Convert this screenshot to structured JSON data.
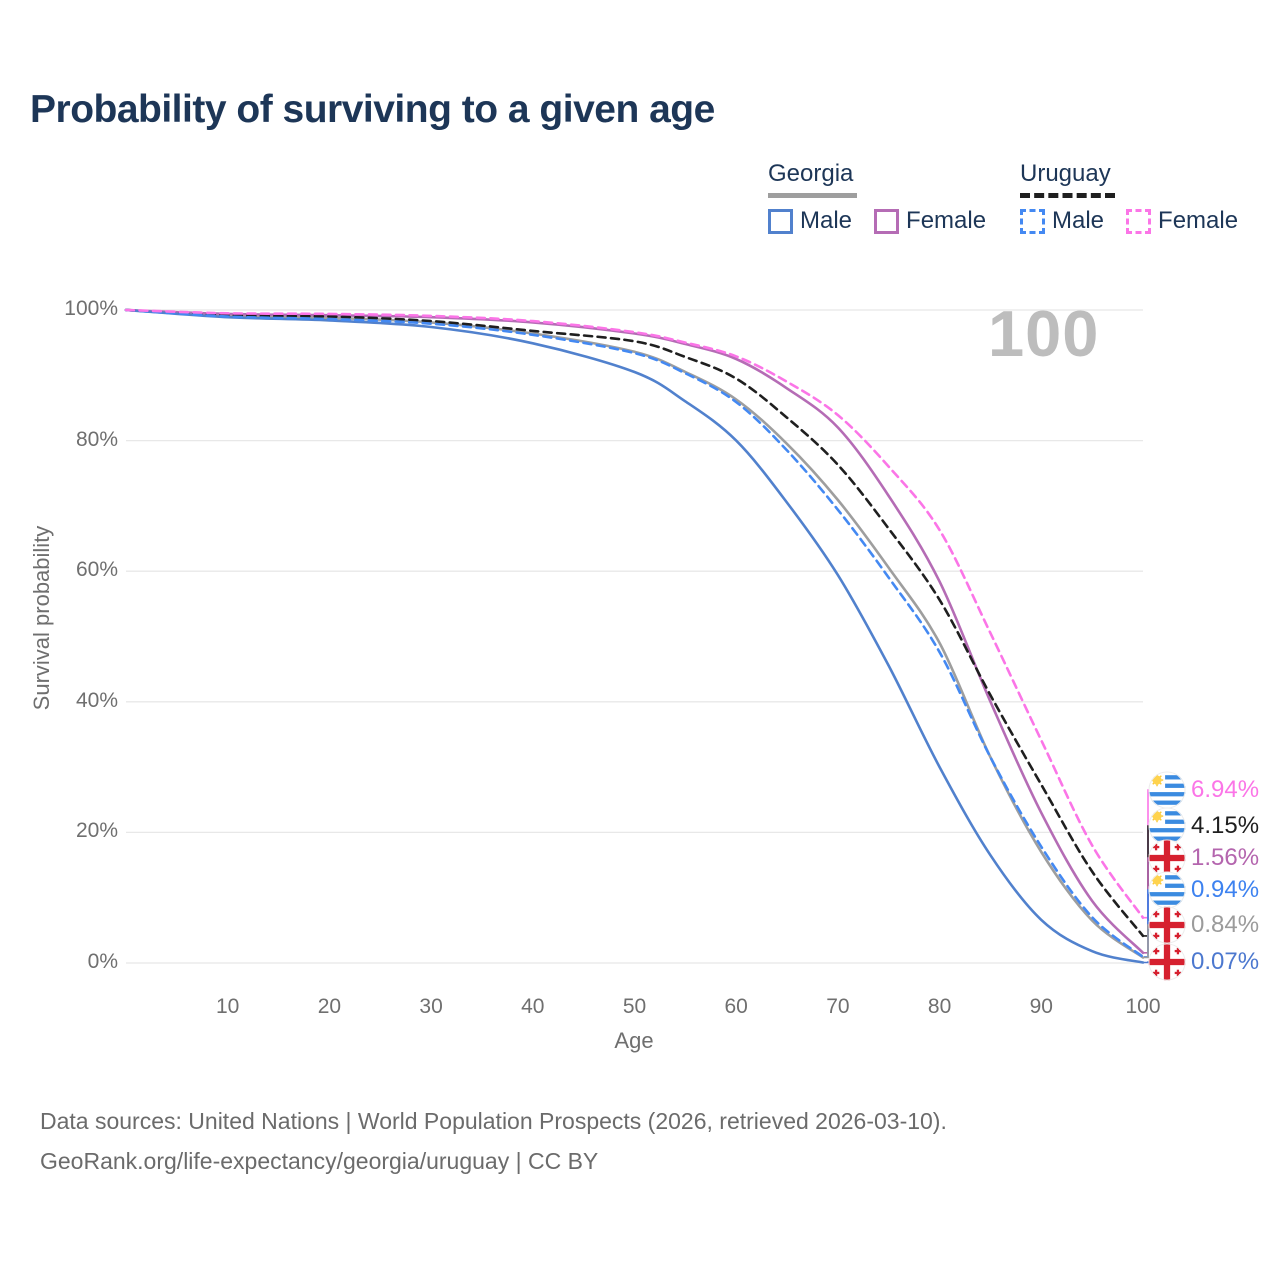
{
  "title": "Probability of surviving to a given age",
  "watermark": "100",
  "legend": {
    "groups": [
      {
        "country": "Georgia",
        "line_style": "solid",
        "underline_color": "#9e9e9e",
        "items": [
          {
            "label": "Male",
            "color": "#5181cd",
            "dashed": false
          },
          {
            "label": "Female",
            "color": "#b56cb5",
            "dashed": false
          }
        ]
      },
      {
        "country": "Uruguay",
        "line_style": "dashed",
        "underline_color": "#1f1f1f",
        "items": [
          {
            "label": "Male",
            "color": "#4489f2",
            "dashed": true
          },
          {
            "label": "Female",
            "color": "#fb75e7",
            "dashed": true
          }
        ]
      }
    ]
  },
  "chart_data": {
    "type": "line",
    "title": "Probability of surviving to a given age",
    "xlabel": "Age",
    "ylabel": "Survival probability",
    "xlim": [
      0,
      110
    ],
    "ylim": [
      0,
      100
    ],
    "grid": "horizontal",
    "x_ticks": [
      10,
      20,
      30,
      40,
      50,
      60,
      70,
      80,
      90,
      100
    ],
    "y_ticks": [
      0,
      20,
      40,
      60,
      80,
      100
    ],
    "y_tick_suffix": "%",
    "x": [
      0,
      10,
      20,
      30,
      40,
      50,
      55,
      60,
      65,
      70,
      75,
      80,
      85,
      90,
      95,
      100
    ],
    "series": [
      {
        "id": "georgia-total",
        "name": "Georgia – Total",
        "country": "Georgia",
        "style": "solid",
        "color": "#9e9e9e",
        "values": [
          100,
          99.1,
          98.8,
          98.1,
          96.4,
          93.6,
          90.5,
          86.3,
          79.5,
          70.9,
          60.5,
          49.0,
          31.5,
          17.0,
          6.5,
          0.84
        ]
      },
      {
        "id": "georgia-female",
        "name": "Georgia – Female",
        "country": "Georgia",
        "style": "solid",
        "color": "#b56cb5",
        "values": [
          100,
          99.4,
          99.2,
          98.9,
          98.1,
          96.4,
          94.8,
          92.5,
          88.0,
          82.0,
          71.5,
          58.4,
          40.0,
          23.0,
          9.5,
          1.56
        ]
      },
      {
        "id": "georgia-male",
        "name": "Georgia – Male",
        "country": "Georgia",
        "style": "solid",
        "color": "#5181cd",
        "values": [
          100,
          98.9,
          98.4,
          97.4,
          94.9,
          90.5,
          86.0,
          80.0,
          70.5,
          59.4,
          45.5,
          30.0,
          16.5,
          6.6,
          1.8,
          0.07
        ]
      },
      {
        "id": "uruguay-total",
        "name": "Uruguay – Total",
        "country": "Uruguay",
        "style": "dashed",
        "color": "#1f1f1f",
        "values": [
          100,
          99.2,
          99.0,
          98.3,
          96.8,
          95.2,
          92.8,
          89.5,
          83.5,
          76.3,
          66.5,
          55.6,
          41.0,
          27.3,
          14.0,
          4.15
        ]
      },
      {
        "id": "uruguay-male",
        "name": "Uruguay – Male",
        "country": "Uruguay",
        "style": "dashed",
        "color": "#4489f2",
        "values": [
          100,
          99.0,
          98.6,
          97.9,
          96.2,
          93.4,
          90.3,
          85.9,
          78.5,
          69.4,
          59.0,
          47.6,
          31.5,
          17.8,
          7.0,
          0.94
        ]
      },
      {
        "id": "uruguay-female",
        "name": "Uruguay – Female",
        "country": "Uruguay",
        "style": "dashed",
        "color": "#fb75e7",
        "values": [
          100,
          99.5,
          99.4,
          99.1,
          98.3,
          96.6,
          95.0,
          92.9,
          89.0,
          83.9,
          76.0,
          66.3,
          50.5,
          34.1,
          18.0,
          6.94
        ]
      }
    ],
    "end_labels": [
      {
        "text": "6.94%",
        "value": 6.94,
        "country": "Uruguay",
        "color": "#fb75e7"
      },
      {
        "text": "4.15%",
        "value": 4.15,
        "country": "Uruguay",
        "color": "#1f1f1f"
      },
      {
        "text": "1.56%",
        "value": 1.56,
        "country": "Georgia",
        "color": "#b465ae"
      },
      {
        "text": "0.94%",
        "value": 0.94,
        "country": "Uruguay",
        "color": "#3d82f0"
      },
      {
        "text": "0.84%",
        "value": 0.84,
        "country": "Georgia",
        "color": "#9b9b9b"
      },
      {
        "text": "0.07%",
        "value": 0.07,
        "country": "Georgia",
        "color": "#4c78cf"
      }
    ]
  },
  "source": {
    "line1": "Data sources: United Nations | World Population Prospects (2026, retrieved 2026-03-10).",
    "line2": "GeoRank.org/life-expectancy/georgia/uruguay | CC BY"
  }
}
